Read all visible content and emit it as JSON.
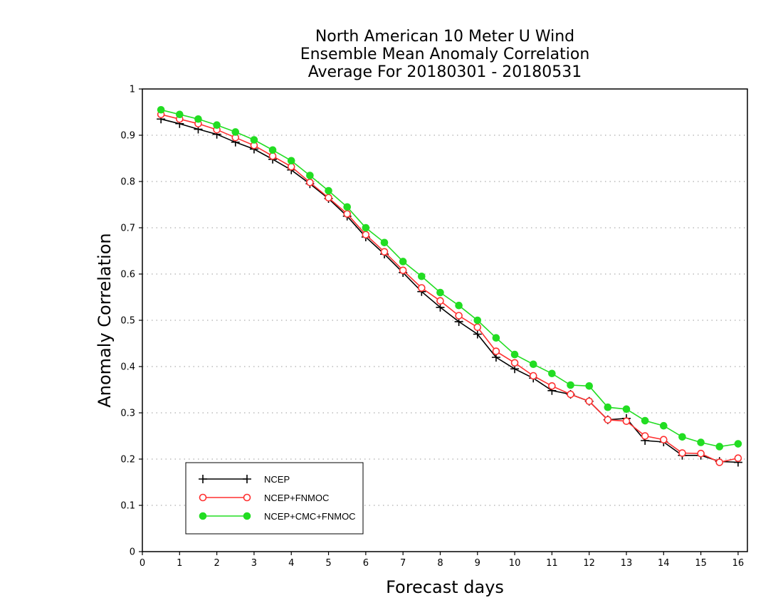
{
  "chart_data": {
    "type": "line",
    "title": [
      "North American 10 Meter U Wind",
      "Ensemble Mean Anomaly Correlation",
      "Average For 20180301 - 20180531"
    ],
    "xlabel": "Forecast days",
    "ylabel": "Anomaly Correlation",
    "xlim": [
      0,
      16.25
    ],
    "ylim": [
      0,
      1
    ],
    "xticks": [
      0,
      1,
      2,
      3,
      4,
      5,
      6,
      7,
      8,
      9,
      10,
      11,
      12,
      13,
      14,
      15,
      16
    ],
    "yticks": [
      0,
      0.1,
      0.2,
      0.3,
      0.4,
      0.5,
      0.6,
      0.7,
      0.8,
      0.9,
      1
    ],
    "ytick_labels": [
      "0",
      "0.1",
      "0.2",
      "0.3",
      "0.4",
      "0.5",
      "0.6",
      "0.7",
      "0.8",
      "0.9",
      "1"
    ],
    "grid": "horizontal dotted",
    "legend_position": "bottom-left",
    "x": [
      0.5,
      1,
      1.5,
      2,
      2.5,
      3,
      3.5,
      4,
      4.5,
      5,
      5.5,
      6,
      6.5,
      7,
      7.5,
      8,
      8.5,
      9,
      9.5,
      10,
      10.5,
      11,
      11.5,
      12,
      12.5,
      13,
      13.5,
      14,
      14.5,
      15,
      15.5,
      16
    ],
    "series": [
      {
        "name": "NCEP",
        "color": "#000000",
        "marker": "plus",
        "values": [
          0.935,
          0.925,
          0.913,
          0.902,
          0.885,
          0.87,
          0.848,
          0.825,
          0.795,
          0.763,
          0.725,
          0.68,
          0.643,
          0.603,
          0.562,
          0.528,
          0.497,
          0.47,
          0.42,
          0.395,
          0.375,
          0.348,
          0.34,
          0.325,
          0.285,
          0.288,
          0.24,
          0.237,
          0.208,
          0.208,
          0.195,
          0.193
        ]
      },
      {
        "name": "NCEP+FNMOC",
        "color": "#ff3030",
        "marker": "open-circle",
        "values": [
          0.945,
          0.935,
          0.925,
          0.912,
          0.895,
          0.878,
          0.855,
          0.832,
          0.798,
          0.765,
          0.73,
          0.685,
          0.648,
          0.608,
          0.57,
          0.542,
          0.51,
          0.485,
          0.433,
          0.408,
          0.38,
          0.358,
          0.34,
          0.325,
          0.285,
          0.282,
          0.25,
          0.242,
          0.213,
          0.212,
          0.193,
          0.202
        ]
      },
      {
        "name": "NCEP+CMC+FNMOC",
        "color": "#22dd22",
        "marker": "filled-circle",
        "values": [
          0.955,
          0.945,
          0.935,
          0.922,
          0.907,
          0.89,
          0.868,
          0.845,
          0.813,
          0.78,
          0.745,
          0.7,
          0.668,
          0.627,
          0.595,
          0.56,
          0.532,
          0.5,
          0.462,
          0.426,
          0.405,
          0.385,
          0.36,
          0.358,
          0.312,
          0.308,
          0.283,
          0.272,
          0.248,
          0.236,
          0.227,
          0.233
        ]
      }
    ]
  }
}
